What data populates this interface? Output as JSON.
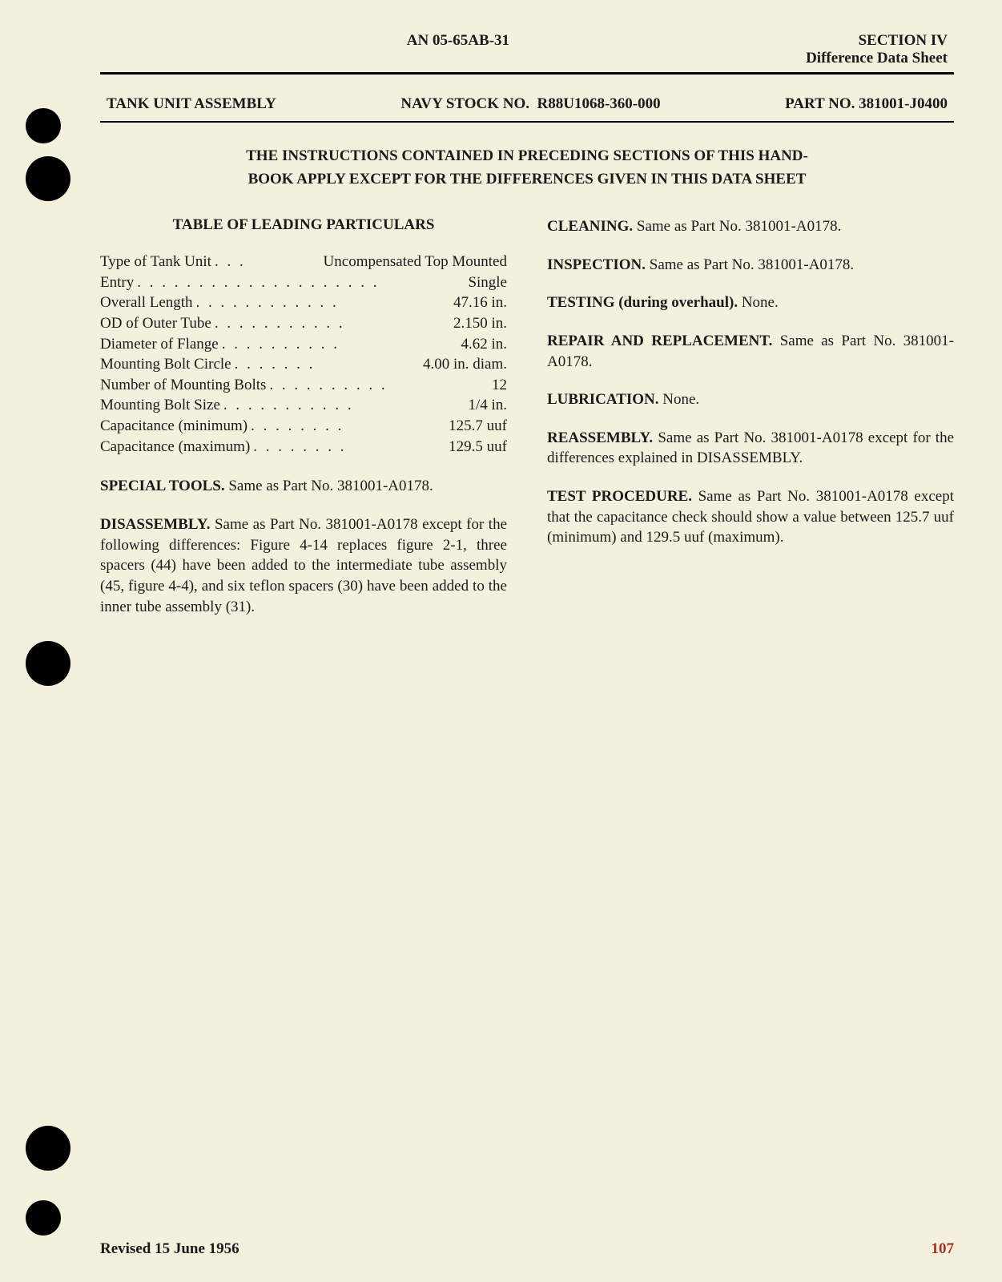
{
  "header": {
    "center": "AN 05-65AB-31",
    "right_line1": "SECTION IV",
    "right_line2": "Difference Data Sheet"
  },
  "subheader": {
    "left": "TANK UNIT ASSEMBLY",
    "stock_label": "NAVY STOCK NO.",
    "stock_no": "R88U1068-360-000",
    "part_label": "PART NO.",
    "part_no": "381001-J0400"
  },
  "banner": {
    "line1": "THE INSTRUCTIONS CONTAINED IN PRECEDING SECTIONS OF THIS HAND-",
    "line2": "BOOK APPLY EXCEPT FOR THE DIFFERENCES GIVEN IN THIS DATA SHEET"
  },
  "table_title": "TABLE OF LEADING PARTICULARS",
  "specs": [
    {
      "label": "Type of Tank Unit",
      "dots": ". . .",
      "value": "Uncompensated Top Mounted"
    },
    {
      "label": "Entry",
      "dots": ". . . . . . . . . . . . . . . . . . . .",
      "value": "Single"
    },
    {
      "label": "Overall Length",
      "dots": ". . . . . . . . . . . .",
      "value": "47.16 in."
    },
    {
      "label": "OD of Outer Tube",
      "dots": ". . . . . . . . . . .",
      "value": "2.150 in."
    },
    {
      "label": "Diameter of Flange",
      "dots": ". . . . . . . . . .",
      "value": "4.62 in."
    },
    {
      "label": "Mounting Bolt Circle",
      "dots": ". . . . . . .",
      "value": "4.00 in. diam."
    },
    {
      "label": "Number of Mounting Bolts",
      "dots": ". . . . . . . . . .",
      "value": "12"
    },
    {
      "label": "Mounting Bolt Size",
      "dots": ". . . . . . . . . . .",
      "value": "1/4 in."
    },
    {
      "label": "Capacitance (minimum)",
      "dots": ". . . . . . . .",
      "value": "125.7 uuf"
    },
    {
      "label": "Capacitance (maximum)",
      "dots": ". . . . . . . .",
      "value": "129.5 uuf"
    }
  ],
  "left_paras": {
    "tools": {
      "lead": "SPECIAL TOOLS.",
      "body": "Same as Part No. 381001-A0178."
    },
    "disassembly": {
      "lead": "DISASSEMBLY.",
      "body": "Same as Part No. 381001-A0178 except for the following differences: Figure 4-14 replaces figure 2-1, three spacers (44) have been added to the intermediate tube assembly (45, figure 4-4), and six teflon spacers (30) have been added to the inner tube assembly (31)."
    }
  },
  "right_paras": {
    "cleaning": {
      "lead": "CLEANING.",
      "body": "Same as Part No. 381001-A0178."
    },
    "inspection": {
      "lead": "INSPECTION.",
      "body": "Same as Part No. 381001-A0178."
    },
    "testing": {
      "lead": "TESTING (during overhaul).",
      "body": "None."
    },
    "repair": {
      "lead": "REPAIR AND REPLACEMENT.",
      "body": "Same as Part No. 381001-A0178."
    },
    "lubrication": {
      "lead": "LUBRICATION.",
      "body": "None."
    },
    "reassembly": {
      "lead": "REASSEMBLY.",
      "body": "Same as Part No. 381001-A0178 except for the differences explained in DISASSEMBLY."
    },
    "testproc": {
      "lead": "TEST PROCEDURE.",
      "body": "Same as Part No. 381001-A0178 except that the capacitance check should show a value between 125.7 uuf (minimum) and 129.5 uuf (maximum)."
    }
  },
  "footer": {
    "revised": "Revised 15 June 1956",
    "page": "107"
  }
}
